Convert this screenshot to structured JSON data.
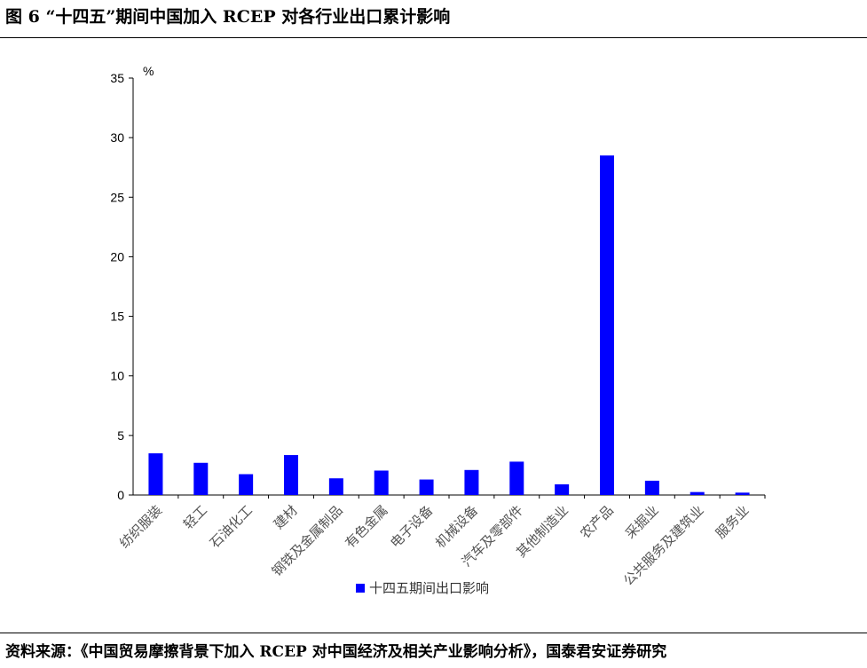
{
  "figure": {
    "title": "图 6  “十四五”期间中国加入 RCEP 对各行业出口累计影响",
    "source": "资料来源：《中国贸易摩擦背景下加入 RCEP 对中国经济及相关产业影响分析》，国泰君安证券研究"
  },
  "chart_data": {
    "type": "bar",
    "categories": [
      "纺织服装",
      "轻工",
      "石油化工",
      "建材",
      "钢铁及金属制品",
      "有色金属",
      "电子设备",
      "机械设备",
      "汽车及零部件",
      "其他制造业",
      "农产品",
      "采掘业",
      "公共服务及建筑业",
      "服务业"
    ],
    "series": [
      {
        "name": "十四五期间出口影响",
        "values": [
          3.5,
          2.7,
          1.75,
          3.35,
          1.4,
          2.05,
          1.3,
          2.1,
          2.8,
          0.9,
          28.5,
          1.2,
          0.25,
          0.2
        ]
      }
    ],
    "ylabel": "%",
    "ylim": [
      0,
      35
    ],
    "yticks": [
      0,
      5,
      10,
      15,
      20,
      25,
      30,
      35
    ],
    "grid": false,
    "legend": "bottom-center",
    "bar_color": "#0000ff"
  }
}
